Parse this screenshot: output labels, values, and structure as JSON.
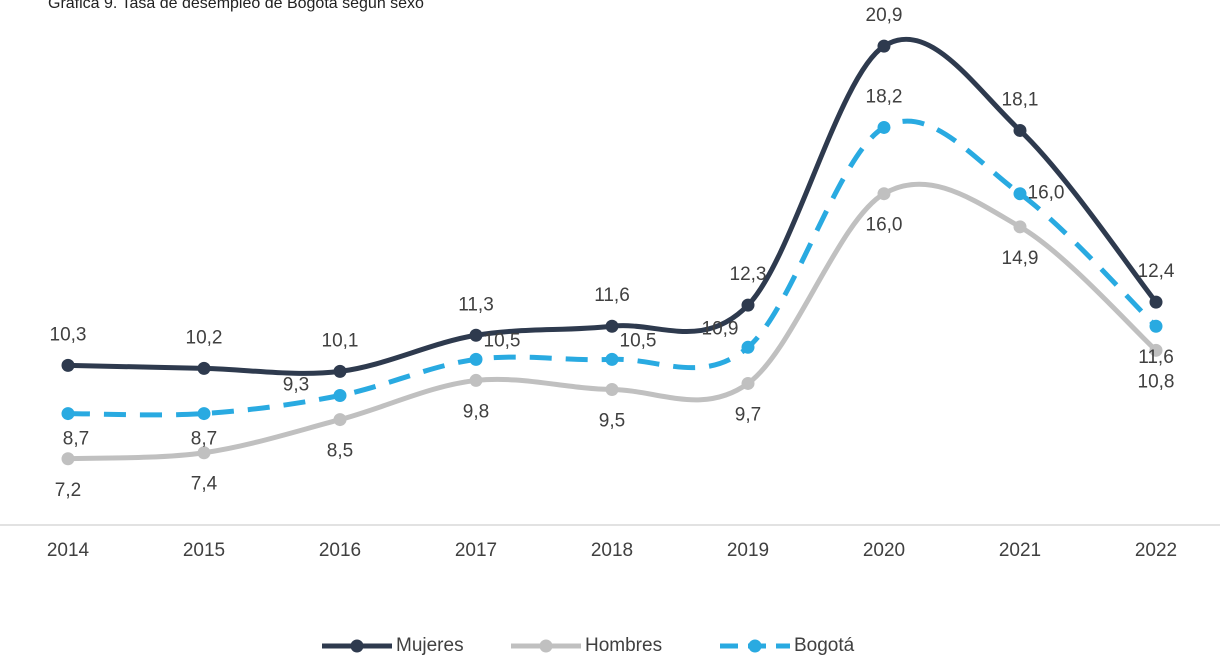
{
  "chart_data": {
    "type": "line",
    "title": "Gráfica 9. Tasa de desempleo de Bogotá según sexo",
    "categories": [
      "2014",
      "2015",
      "2016",
      "2017",
      "2018",
      "2019",
      "2020",
      "2021",
      "2022"
    ],
    "ylim": [
      5,
      22
    ],
    "series": [
      {
        "name": "Mujeres",
        "color": "#2e3a4e",
        "dashed": false,
        "values": [
          10.3,
          10.2,
          10.1,
          11.3,
          11.6,
          12.3,
          20.9,
          18.1,
          12.4
        ],
        "value_labels": [
          "10,3",
          "10,2",
          "10,1",
          "11,3",
          "11,6",
          "12,3",
          "20,9",
          "18,1",
          "12,4"
        ]
      },
      {
        "name": "Hombres",
        "color": "#c0c0c0",
        "dashed": false,
        "values": [
          7.2,
          7.4,
          8.5,
          9.8,
          9.5,
          9.7,
          16.0,
          14.9,
          10.8
        ],
        "value_labels": [
          "7,2",
          "7,4",
          "8,5",
          "9,8",
          "9,5",
          "9,7",
          "16,0",
          "14,9",
          "10,8"
        ]
      },
      {
        "name": "Bogotá",
        "color": "#29aae1",
        "dashed": true,
        "values": [
          8.7,
          8.7,
          9.3,
          10.5,
          10.5,
          10.9,
          18.2,
          16.0,
          11.6
        ],
        "value_labels": [
          "8,7",
          "8,7",
          "9,3",
          "10,5",
          "10,5",
          "10,9",
          "18,2",
          "16,0",
          "11,6"
        ]
      }
    ]
  }
}
